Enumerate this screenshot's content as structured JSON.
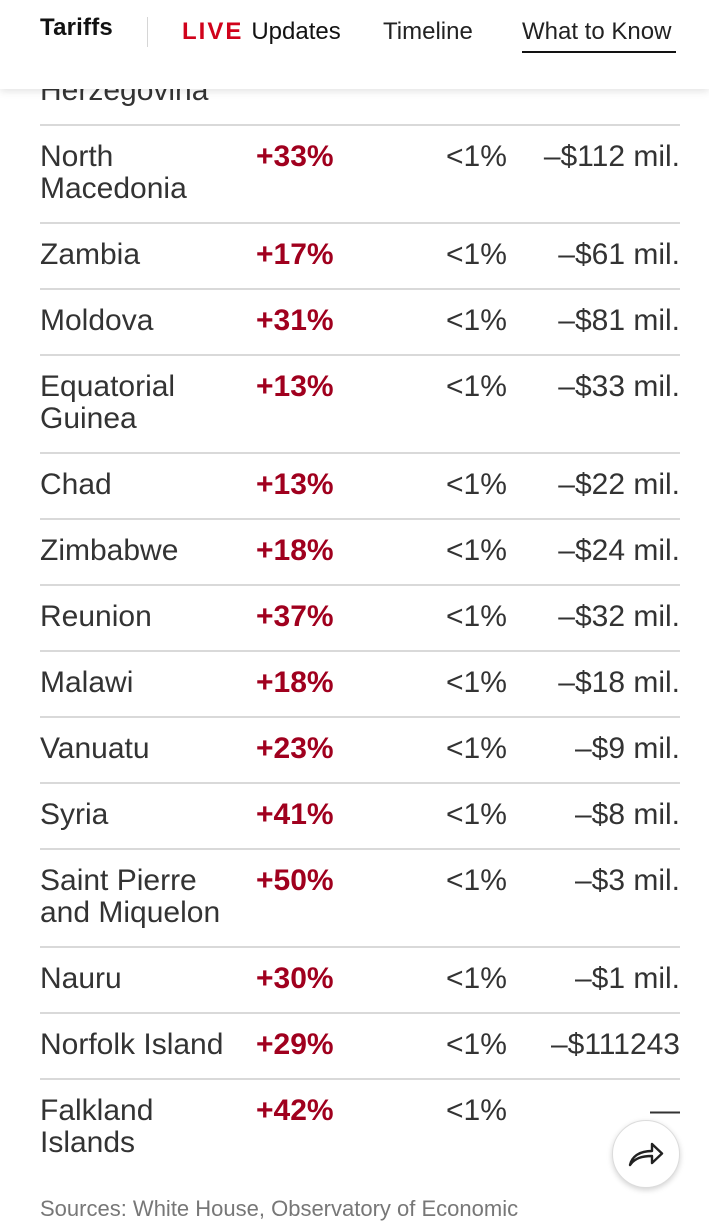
{
  "nav": {
    "title": "Tariffs",
    "live_label": "LIVE",
    "updates_label": "Updates",
    "timeline_label": "Timeline",
    "what_to_know_label": "What to Know",
    "accent_color": "#d0021b"
  },
  "table": {
    "cut_label": "Herzegovina",
    "rows": [
      {
        "country": "North Macedonia",
        "change": "+33%",
        "share": "<1%",
        "effect": "–$112 mil."
      },
      {
        "country": "Zambia",
        "change": "+17%",
        "share": "<1%",
        "effect": "–$61 mil."
      },
      {
        "country": "Moldova",
        "change": "+31%",
        "share": "<1%",
        "effect": "–$81 mil."
      },
      {
        "country": "Equatorial Guinea",
        "change": "+13%",
        "share": "<1%",
        "effect": "–$33 mil."
      },
      {
        "country": "Chad",
        "change": "+13%",
        "share": "<1%",
        "effect": "–$22 mil."
      },
      {
        "country": "Zimbabwe",
        "change": "+18%",
        "share": "<1%",
        "effect": "–$24 mil."
      },
      {
        "country": "Reunion",
        "change": "+37%",
        "share": "<1%",
        "effect": "–$32 mil."
      },
      {
        "country": "Malawi",
        "change": "+18%",
        "share": "<1%",
        "effect": "–$18 mil."
      },
      {
        "country": "Vanuatu",
        "change": "+23%",
        "share": "<1%",
        "effect": "–$9 mil."
      },
      {
        "country": "Syria",
        "change": "+41%",
        "share": "<1%",
        "effect": "–$8 mil."
      },
      {
        "country": "Saint Pierre and Miquelon",
        "change": "+50%",
        "share": "<1%",
        "effect": "–$3 mil."
      },
      {
        "country": "Nauru",
        "change": "+30%",
        "share": "<1%",
        "effect": "–$1 mil."
      },
      {
        "country": "Norfolk Island",
        "change": "+29%",
        "share": "<1%",
        "effect": "–$111243"
      },
      {
        "country": "Falkland Islands",
        "change": "+42%",
        "share": "<1%",
        "effect": "—"
      }
    ],
    "change_color": "#a0001e"
  },
  "source": "Sources: White House, Observatory of Economic",
  "share_button": {
    "icon": "share-arrow-icon"
  }
}
